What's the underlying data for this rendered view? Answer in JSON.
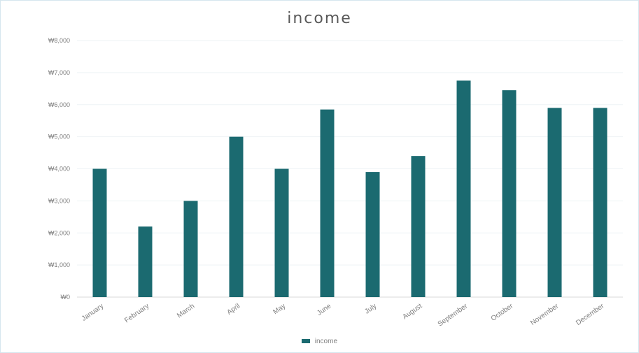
{
  "chart_data": {
    "type": "bar",
    "title": "income",
    "xlabel": "",
    "ylabel": "",
    "categories": [
      "January",
      "February",
      "March",
      "April",
      "May",
      "June",
      "July",
      "August",
      "September",
      "October",
      "November",
      "December"
    ],
    "series": [
      {
        "name": "income",
        "values": [
          4000,
          2200,
          3000,
          5000,
          4000,
          5850,
          3900,
          4400,
          6750,
          6450,
          5900,
          5900
        ]
      }
    ],
    "ylim": [
      0,
      8000
    ],
    "y_ticks": [
      0,
      1000,
      2000,
      3000,
      4000,
      5000,
      6000,
      7000,
      8000
    ],
    "y_tick_labels": [
      "₩0",
      "₩1,000",
      "₩2,000",
      "₩3,000",
      "₩4,000",
      "₩5,000",
      "₩6,000",
      "₩7,000",
      "₩8,000"
    ],
    "grid": true,
    "legend_position": "bottom",
    "bar_color": "#1b6a70"
  }
}
